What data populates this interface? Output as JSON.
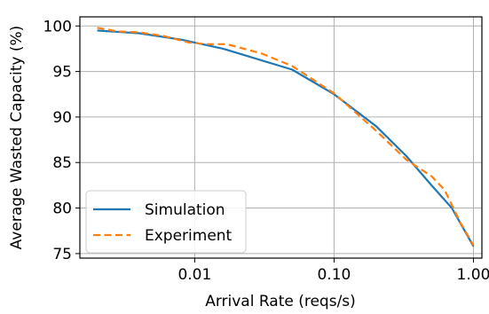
{
  "chart_data": {
    "type": "line",
    "title": "",
    "xlabel": "Arrival Rate (reqs/s)",
    "ylabel": "Average Wasted Capacity (%)",
    "xscale": "log",
    "xlim": [
      0.0015,
      1.15
    ],
    "ylim": [
      74.5,
      101
    ],
    "xticks": [
      0.01,
      0.1,
      1.0
    ],
    "xtick_labels": [
      "0.01",
      "0.10",
      "1.00"
    ],
    "yticks": [
      75,
      80,
      85,
      90,
      95,
      100
    ],
    "ytick_labels": [
      "75",
      "80",
      "85",
      "90",
      "95",
      "100"
    ],
    "grid": true,
    "legend_position": "lower-left",
    "series": [
      {
        "name": "Simulation",
        "color": "#1f77b4",
        "dash": "solid",
        "x": [
          0.002,
          0.004,
          0.008,
          0.016,
          0.05,
          0.1,
          0.2,
          0.33,
          0.5,
          0.7,
          1.0
        ],
        "y": [
          99.5,
          99.2,
          98.5,
          97.5,
          95.2,
          92.5,
          89.0,
          85.7,
          82.5,
          80.0,
          75.8
        ]
      },
      {
        "name": "Experiment",
        "color": "#ff7f0e",
        "dash": "dashed",
        "x": [
          0.002,
          0.0028,
          0.004,
          0.006,
          0.009,
          0.012,
          0.017,
          0.03,
          0.05,
          0.1,
          0.2,
          0.33,
          0.5,
          0.62,
          0.8,
          1.0
        ],
        "y": [
          99.8,
          99.4,
          99.3,
          98.9,
          98.2,
          98.0,
          98.0,
          97.0,
          95.6,
          92.6,
          88.5,
          85.3,
          83.5,
          82.0,
          78.5,
          75.9
        ]
      }
    ]
  }
}
